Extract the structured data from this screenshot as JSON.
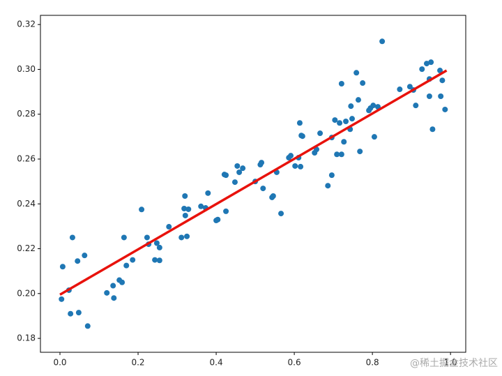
{
  "chart_data": {
    "type": "scatter",
    "x": [
      0.004,
      0.007,
      0.023,
      0.027,
      0.032,
      0.045,
      0.048,
      0.063,
      0.071,
      0.12,
      0.136,
      0.138,
      0.152,
      0.159,
      0.164,
      0.17,
      0.186,
      0.209,
      0.223,
      0.227,
      0.243,
      0.248,
      0.255,
      0.255,
      0.279,
      0.311,
      0.318,
      0.32,
      0.321,
      0.325,
      0.329,
      0.361,
      0.373,
      0.379,
      0.4,
      0.404,
      0.421,
      0.425,
      0.425,
      0.448,
      0.454,
      0.459,
      0.468,
      0.5,
      0.513,
      0.516,
      0.52,
      0.543,
      0.546,
      0.555,
      0.566,
      0.586,
      0.591,
      0.602,
      0.611,
      0.614,
      0.616,
      0.618,
      0.621,
      0.652,
      0.657,
      0.666,
      0.686,
      0.696,
      0.696,
      0.704,
      0.709,
      0.716,
      0.721,
      0.721,
      0.727,
      0.732,
      0.743,
      0.745,
      0.748,
      0.759,
      0.764,
      0.768,
      0.775,
      0.791,
      0.795,
      0.802,
      0.805,
      0.814,
      0.825,
      0.87,
      0.896,
      0.905,
      0.911,
      0.927,
      0.939,
      0.946,
      0.946,
      0.95,
      0.954,
      0.973,
      0.975,
      0.979,
      0.986
    ],
    "values": [
      0.1975,
      0.212,
      0.2015,
      0.191,
      0.225,
      0.2145,
      0.1915,
      0.217,
      0.1855,
      0.2003,
      0.2035,
      0.198,
      0.206,
      0.205,
      0.225,
      0.2125,
      0.215,
      0.2375,
      0.225,
      0.222,
      0.215,
      0.2225,
      0.2148,
      0.2205,
      0.2298,
      0.225,
      0.2379,
      0.2435,
      0.2348,
      0.2255,
      0.2376,
      0.2389,
      0.2382,
      0.2448,
      0.2326,
      0.233,
      0.2531,
      0.2528,
      0.2367,
      0.2497,
      0.2569,
      0.2541,
      0.2559,
      0.25,
      0.2575,
      0.2584,
      0.2469,
      0.2429,
      0.2435,
      0.2541,
      0.2357,
      0.2606,
      0.2615,
      0.2569,
      0.2606,
      0.2761,
      0.2566,
      0.2705,
      0.2702,
      0.2628,
      0.2643,
      0.2715,
      0.2481,
      0.2528,
      0.2696,
      0.2774,
      0.2621,
      0.2761,
      0.2936,
      0.2621,
      0.2677,
      0.2768,
      0.2733,
      0.2836,
      0.278,
      0.2985,
      0.2864,
      0.2634,
      0.2939,
      0.2817,
      0.2827,
      0.2839,
      0.2699,
      0.2833,
      0.3125,
      0.2911,
      0.2923,
      0.2908,
      0.2839,
      0.3001,
      0.3026,
      0.2957,
      0.288,
      0.3032,
      0.2733,
      0.2995,
      0.288,
      0.2951,
      0.2821
    ],
    "color": "#1f77b4",
    "fit_line": {
      "x": [
        0,
        0.99
      ],
      "values": [
        0.1995,
        0.2995
      ],
      "color": "#e8120c"
    },
    "xlim": [
      -0.05,
      1.039
    ],
    "ylim": [
      0.1738,
      0.3241
    ],
    "xticks": [
      {
        "value": 0,
        "label": "0.0"
      },
      0.2,
      0.4,
      0.6,
      0.8,
      {
        "value": 1,
        "label": "1.0"
      }
    ],
    "yticks": [
      0.18,
      {
        "value": 0.2,
        "label": "0.20"
      },
      0.22,
      0.24,
      0.26,
      0.28,
      {
        "value": 0.3,
        "label": "0.30"
      },
      0.32
    ],
    "annotation": "@稀土掘金技术社区"
  }
}
